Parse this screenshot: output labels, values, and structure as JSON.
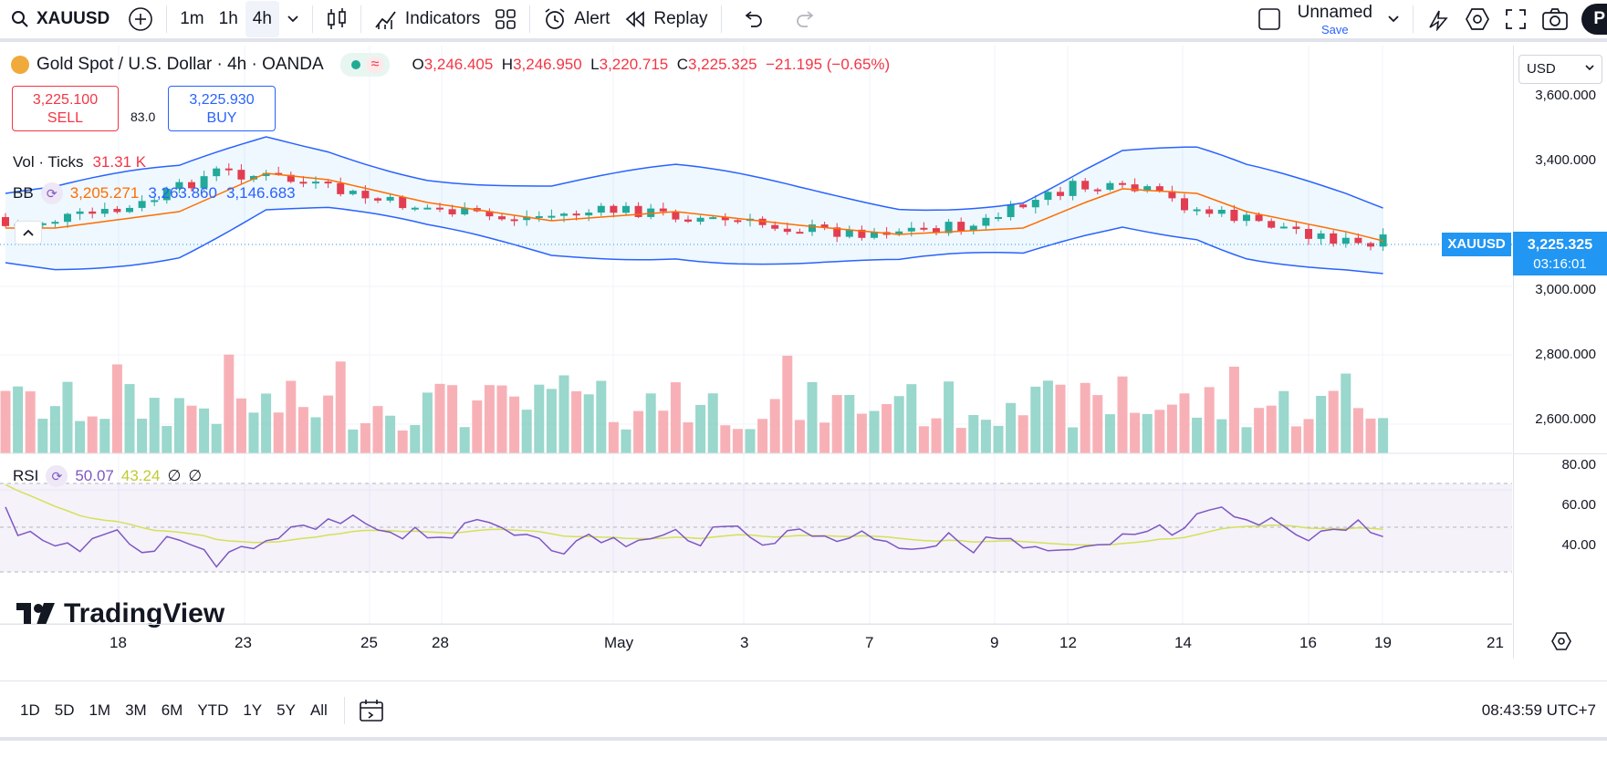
{
  "toolbar": {
    "symbol": "XAUUSD",
    "intervals": [
      "1m",
      "1h",
      "4h"
    ],
    "active_interval": "4h",
    "indicators_label": "Indicators",
    "alert_label": "Alert",
    "replay_label": "Replay",
    "layout_name": "Unnamed",
    "save_label": "Save",
    "publish_partial": "P"
  },
  "legend": {
    "title": "Gold Spot / U.S. Dollar · 4h · OANDA",
    "o_key": "O",
    "o": "3,246.405",
    "h_key": "H",
    "h": "3,246.950",
    "l_key": "L",
    "l": "3,220.715",
    "c_key": "C",
    "c": "3,225.325",
    "change": "−21.195 (−0.65%)"
  },
  "trade": {
    "sell_price": "3,225.100",
    "sell_label": "SELL",
    "spread": "83.0",
    "buy_price": "3,225.930",
    "buy_label": "BUY"
  },
  "volume": {
    "label": "Vol · Ticks",
    "value": "31.31 K"
  },
  "bb": {
    "label": "BB",
    "basis": "3,205.271",
    "upper": "3,263.860",
    "lower": "3,146.683"
  },
  "rsi": {
    "label": "RSI",
    "value": "50.07",
    "ma": "43.24",
    "extra1": "∅",
    "extra2": "∅"
  },
  "price_scale": {
    "currency": "USD",
    "labels": [
      "3,600.000",
      "3,400.000",
      "3,000.000",
      "2,800.000",
      "2,600.000"
    ],
    "current_price": "3,225.325",
    "countdown": "03:16:01",
    "symbol_tag": "XAUUSD"
  },
  "rsi_scale": [
    "80.00",
    "60.00",
    "40.00"
  ],
  "time_labels": [
    "18",
    "23",
    "25",
    "28",
    "May",
    "3",
    "7",
    "9",
    "12",
    "14",
    "16",
    "19",
    "21"
  ],
  "ranges": [
    "1D",
    "5D",
    "1M",
    "3M",
    "6M",
    "YTD",
    "1Y",
    "5Y",
    "All"
  ],
  "clock": "08:43:59 UTC+7",
  "watermark": "TradingView",
  "colors": {
    "up": "#22ab94",
    "down": "#f23645",
    "bb": "#2962ff",
    "basis": "#ff6d00",
    "rsi": "#7e57c2",
    "rsi_ma": "#d4e157",
    "accent": "#2196f3"
  }
}
